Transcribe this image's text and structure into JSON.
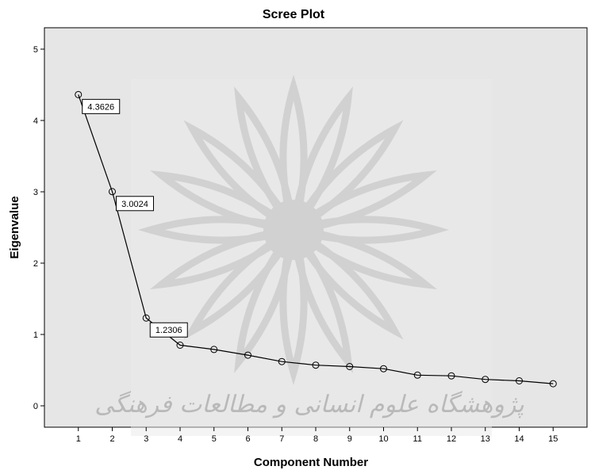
{
  "chart_data": {
    "type": "line",
    "title": "Scree Plot",
    "xlabel": "Component Number",
    "ylabel": "Eigenvalue",
    "x": [
      1,
      2,
      3,
      4,
      5,
      6,
      7,
      8,
      9,
      10,
      11,
      12,
      13,
      14,
      15
    ],
    "xlim": [
      0,
      16
    ],
    "ylim": [
      -0.3,
      5.3
    ],
    "yticks": [
      0,
      1,
      2,
      3,
      4,
      5
    ],
    "series": [
      {
        "values": [
          4.3626,
          3.0024,
          1.2306,
          0.85,
          0.79,
          0.71,
          0.62,
          0.57,
          0.55,
          0.52,
          0.43,
          0.42,
          0.37,
          0.35,
          0.31
        ]
      }
    ],
    "annotations": [
      {
        "x": 1,
        "text": "4.3626"
      },
      {
        "x": 2,
        "text": "3.0024"
      },
      {
        "x": 3,
        "text": "1.2306"
      }
    ],
    "grid": false,
    "marker": "open-circle",
    "colors": {
      "plot_background": "#e6e6e6",
      "line": "#000000",
      "watermark": "#bdbdbd"
    },
    "watermark_text": "پژوهشگاه علوم انسانی و مطالعات فرهنگی"
  }
}
